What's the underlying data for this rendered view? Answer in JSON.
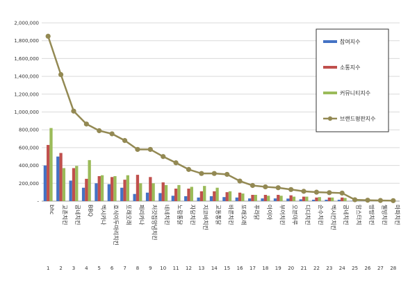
{
  "chart_data": {
    "type": "bar",
    "title": "",
    "xlabel": "",
    "ylabel": "",
    "ylim": [
      0,
      2000000
    ],
    "yticks": [
      "-",
      "200,000",
      "400,000",
      "600,000",
      "800,000",
      "1,000,000",
      "1,200,000",
      "1,400,000",
      "1,600,000",
      "1,800,000",
      "2,000,000"
    ],
    "grid": "horizontal",
    "legend_position": "top-right",
    "index_labels": [
      "1",
      "2",
      "3",
      "4",
      "5",
      "6",
      "7",
      "8",
      "9",
      "10",
      "11",
      "12",
      "13",
      "14",
      "15",
      "16",
      "17",
      "18",
      "19",
      "20",
      "21",
      "22",
      "23",
      "24",
      "25",
      "26",
      "27",
      "28"
    ],
    "categories": [
      "bhc",
      "교촌치킨",
      "굽네치킨",
      "BBQ",
      "멕시카나",
      "호식이두마리치킨",
      "또래오래",
      "페리카나",
      "처갓집양념치킨",
      "네네치킨",
      "노랑통닭",
      "자담치킨",
      "지코바치킨",
      "교동통닭",
      "바른치킨",
      "또래오래",
      "푸라닭",
      "아이아",
      "부어치킨",
      "오븐마루",
      "디디치킨",
      "순수치킨",
      "멕시칸치킨",
      "굽네치킨",
      "맘스터치",
      "땅땅치킨",
      "웰빙치킨",
      "마파치킨"
    ],
    "series": [
      {
        "name": "참여지수",
        "color": "#4472c4",
        "values": [
          400000,
          500000,
          230000,
          150000,
          200000,
          190000,
          150000,
          80000,
          95000,
          90000,
          60000,
          55000,
          40000,
          55000,
          45000,
          40000,
          30000,
          30000,
          30000,
          28000,
          20000,
          15000,
          15000,
          15000,
          3000,
          2000,
          2000,
          1000
        ]
      },
      {
        "name": "소통지수",
        "color": "#c0504d",
        "values": [
          630000,
          540000,
          370000,
          250000,
          280000,
          270000,
          240000,
          295000,
          270000,
          210000,
          140000,
          140000,
          110000,
          110000,
          100000,
          95000,
          70000,
          70000,
          70000,
          65000,
          50000,
          40000,
          40000,
          40000,
          5000,
          4000,
          3000,
          2000
        ]
      },
      {
        "name": "커뮤니티지수",
        "color": "#9bbb59",
        "values": [
          820000,
          370000,
          395000,
          460000,
          290000,
          280000,
          290000,
          200000,
          200000,
          180000,
          180000,
          160000,
          170000,
          150000,
          110000,
          85000,
          70000,
          60000,
          60000,
          50000,
          50000,
          45000,
          40000,
          35000,
          5000,
          3000,
          2000,
          1000
        ]
      },
      {
        "name": "브랜드평판지수",
        "color": "#938953",
        "type": "line",
        "values": [
          1850000,
          1420000,
          1010000,
          865000,
          790000,
          755000,
          680000,
          580000,
          580000,
          500000,
          430000,
          355000,
          310000,
          310000,
          300000,
          225000,
          175000,
          160000,
          150000,
          130000,
          110000,
          100000,
          95000,
          90000,
          15000,
          10000,
          7000,
          5000
        ]
      }
    ]
  }
}
